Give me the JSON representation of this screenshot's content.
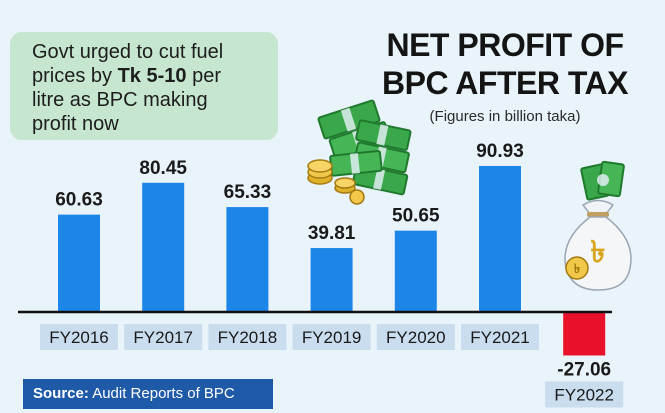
{
  "headline": {
    "line1": "Govt urged to cut fuel",
    "line2_pre": "prices by ",
    "line2_bold": "Tk 5-10",
    "line2_post": " per",
    "line3": "litre as BPC making",
    "line4": "profit now"
  },
  "source": {
    "label": "Source:",
    "text": " Audit Reports of BPC"
  },
  "colors": {
    "positive_bar": "#1c86e8",
    "negative_bar": "#e8102a",
    "axis": "#111111",
    "label_box": "#c9ddee",
    "callout": "#c6e6cf",
    "source_bar": "#1f5aa8"
  },
  "icons": [
    "money-stack-icon",
    "coins-icon",
    "money-bag-icon"
  ],
  "chart_data": {
    "type": "bar",
    "title": "NET PROFIT OF BPC AFTER TAX",
    "title_line1": "NET PROFIT OF",
    "title_line2": "BPC AFTER TAX",
    "subtitle": "(Figures in billion taka)",
    "categories": [
      "FY2016",
      "FY2017",
      "FY2018",
      "FY2019",
      "FY2020",
      "FY2021",
      "FY2022"
    ],
    "values": [
      60.63,
      80.45,
      65.33,
      39.81,
      50.65,
      90.93,
      -27.06
    ],
    "value_labels": [
      "60.63",
      "80.45",
      "65.33",
      "39.81",
      "50.65",
      "90.93",
      "-27.06"
    ],
    "xlabel": "",
    "ylabel": "",
    "ylim": [
      -27.06,
      90.93
    ],
    "grid": false
  }
}
